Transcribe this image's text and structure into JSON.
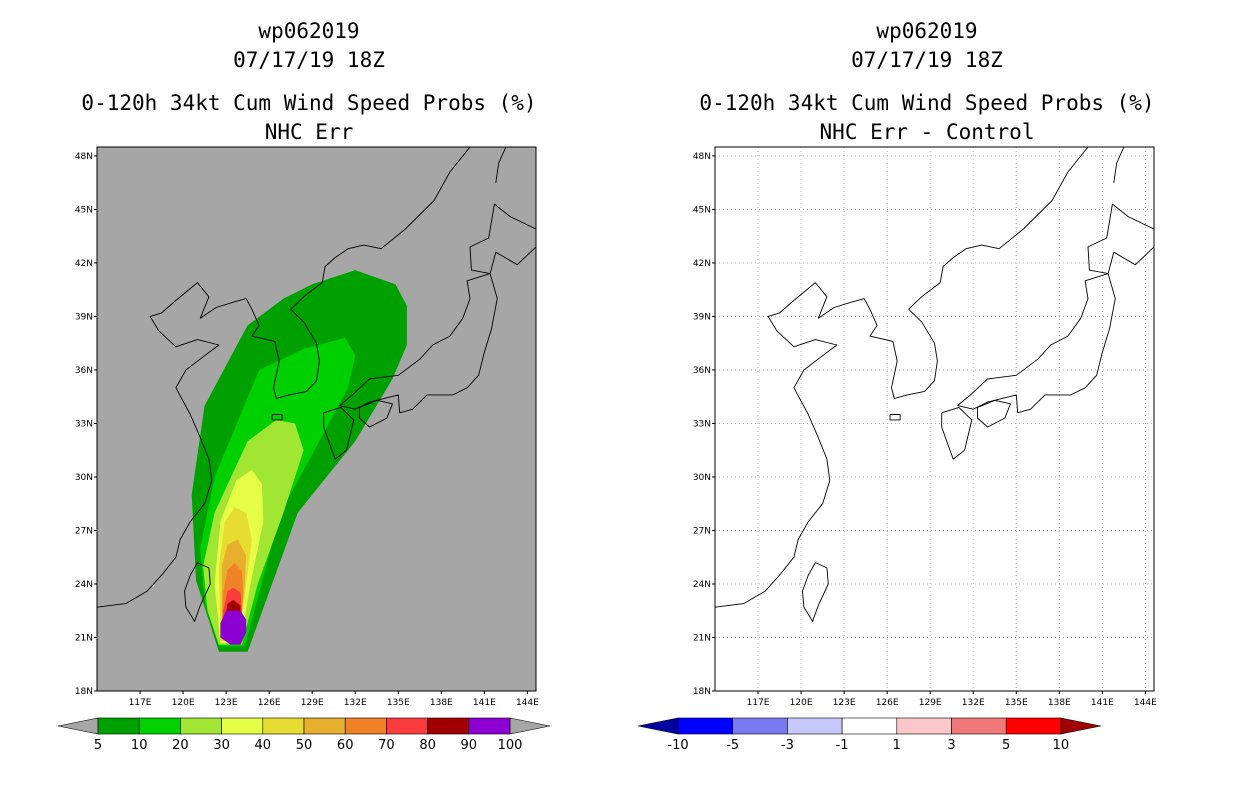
{
  "panels": [
    {
      "storm_id": "wp062019",
      "datetime": "07/17/19 18Z",
      "title": "0-120h 34kt Cum Wind Speed Probs (%)",
      "subtitle": "NHC Err",
      "background": "#a6a6a6",
      "gridlines": false,
      "colorbar_labels": [
        "5",
        "10",
        "20",
        "30",
        "40",
        "50",
        "60",
        "70",
        "80",
        "90",
        "100"
      ],
      "colorbar_colors": [
        "#00a000",
        "#00d000",
        "#a0e632",
        "#e6ff46",
        "#e6dc32",
        "#e6af2d",
        "#f08228",
        "#fa3c3c",
        "#a00000",
        "#8c00d2"
      ],
      "colorbar_end_colors": [
        "#a6a6a6",
        "#a6a6a6"
      ]
    },
    {
      "storm_id": "wp062019",
      "datetime": "07/17/19 18Z",
      "title": "0-120h 34kt Cum Wind Speed Probs (%)",
      "subtitle": "NHC Err - Control",
      "background": "#ffffff",
      "gridlines": true,
      "colorbar_labels": [
        "-10",
        "-5",
        "-3",
        "-1",
        "1",
        "3",
        "5",
        "10"
      ],
      "colorbar_colors": [
        "#0000ff",
        "#7878f0",
        "#c8c8fa",
        "#ffffff",
        "#fac8c8",
        "#f07878",
        "#ff0000"
      ],
      "colorbar_end_colors": [
        "#0000a0",
        "#a00000"
      ]
    }
  ],
  "map_axes": {
    "lat_labels": [
      "48N",
      "45N",
      "42N",
      "39N",
      "36N",
      "33N",
      "30N",
      "27N",
      "24N",
      "21N",
      "18N"
    ],
    "lon_labels": [
      "117E",
      "120E",
      "123E",
      "126E",
      "129E",
      "132E",
      "135E",
      "138E",
      "141E",
      "144E"
    ],
    "lat_range": [
      18,
      48.5
    ],
    "lon_range": [
      114,
      144.6
    ]
  },
  "probability_shading": [
    {
      "level": "5",
      "color": "#00a000",
      "hull": [
        [
          122.5,
          20.2
        ],
        [
          124.5,
          20.2
        ],
        [
          128,
          28
        ],
        [
          132,
          32
        ],
        [
          134.6,
          35.5
        ],
        [
          135.6,
          37.4
        ],
        [
          135.6,
          39.6
        ],
        [
          134.8,
          40.8
        ],
        [
          132,
          41.6
        ],
        [
          129,
          40.8
        ],
        [
          127,
          40
        ],
        [
          124.5,
          38.5
        ],
        [
          121.5,
          34
        ],
        [
          120.6,
          29
        ],
        [
          120.9,
          24.2
        ]
      ]
    },
    {
      "level": "10",
      "color": "#00d000",
      "hull": [
        [
          122.5,
          20.5
        ],
        [
          124.3,
          20.5
        ],
        [
          126.8,
          28
        ],
        [
          129.5,
          32
        ],
        [
          131.5,
          35
        ],
        [
          132,
          36.8
        ],
        [
          131.3,
          37.8
        ],
        [
          128.5,
          37.2
        ],
        [
          125.3,
          36
        ],
        [
          122.2,
          30
        ],
        [
          121.2,
          26
        ],
        [
          121.5,
          23
        ]
      ]
    },
    {
      "level": "20",
      "color": "#a0e632",
      "hull": [
        [
          122.5,
          20.6
        ],
        [
          124.1,
          20.6
        ],
        [
          125.2,
          24
        ],
        [
          127,
          28
        ],
        [
          128.4,
          31.5
        ],
        [
          127.8,
          33
        ],
        [
          126.5,
          33.2
        ],
        [
          124.5,
          32
        ],
        [
          122.2,
          28
        ],
        [
          121.4,
          25
        ],
        [
          121.7,
          22.5
        ]
      ]
    },
    {
      "level": "30",
      "color": "#e6ff46",
      "hull": [
        [
          122.6,
          20.7
        ],
        [
          124,
          20.7
        ],
        [
          124.7,
          24
        ],
        [
          125.6,
          27.5
        ],
        [
          125.5,
          29.6
        ],
        [
          124.8,
          30.4
        ],
        [
          123.7,
          29.8
        ],
        [
          122.6,
          27.5
        ],
        [
          122.2,
          24
        ]
      ]
    },
    {
      "level": "40",
      "color": "#e6dc32",
      "hull": [
        [
          122.6,
          20.8
        ],
        [
          123.9,
          20.8
        ],
        [
          124.4,
          24
        ],
        [
          124.8,
          26.5
        ],
        [
          124.4,
          28
        ],
        [
          123.6,
          28.3
        ],
        [
          122.9,
          27.5
        ],
        [
          122.5,
          25
        ]
      ]
    },
    {
      "level": "50",
      "color": "#e6af2d",
      "hull": [
        [
          122.7,
          20.9
        ],
        [
          123.9,
          20.9
        ],
        [
          124.3,
          24
        ],
        [
          124.4,
          25.6
        ],
        [
          123.8,
          26.5
        ],
        [
          123.1,
          26.2
        ],
        [
          122.7,
          25
        ]
      ]
    },
    {
      "level": "60",
      "color": "#f08228",
      "hull": [
        [
          122.7,
          21
        ],
        [
          123.9,
          21
        ],
        [
          124.2,
          23.5
        ],
        [
          124.1,
          24.7
        ],
        [
          123.6,
          25.2
        ],
        [
          123.1,
          24.8
        ],
        [
          122.8,
          23.5
        ]
      ]
    },
    {
      "level": "70",
      "color": "#fa3c3c",
      "hull": [
        [
          122.8,
          21.1
        ],
        [
          123.8,
          21.1
        ],
        [
          124.1,
          22.5
        ],
        [
          124,
          23.5
        ],
        [
          123.5,
          23.8
        ],
        [
          123.1,
          23.6
        ],
        [
          122.8,
          22.5
        ]
      ]
    },
    {
      "level": "80",
      "color": "#a00000",
      "hull": [
        [
          122.9,
          21.2
        ],
        [
          123.8,
          21.2
        ],
        [
          124,
          22
        ],
        [
          124,
          22.8
        ],
        [
          123.5,
          23.1
        ],
        [
          123.1,
          22.9
        ],
        [
          122.9,
          22
        ]
      ]
    },
    {
      "level": "90",
      "color": "#8c00d2",
      "hull": [
        [
          122.6,
          21
        ],
        [
          123.3,
          20.6
        ],
        [
          124,
          20.6
        ],
        [
          124.4,
          21.3
        ],
        [
          124.4,
          22
        ],
        [
          124,
          22.5
        ],
        [
          123,
          22.5
        ],
        [
          122.6,
          21.8
        ]
      ]
    }
  ],
  "coastlines": {
    "china_coast": [
      [
        114,
        22.7
      ],
      [
        116,
        22.9
      ],
      [
        117.5,
        23.6
      ],
      [
        118.5,
        24.5
      ],
      [
        119.5,
        25.5
      ],
      [
        119.8,
        26.5
      ],
      [
        120.5,
        27.5
      ],
      [
        121.5,
        28.5
      ],
      [
        122,
        29.8
      ],
      [
        121.8,
        31
      ],
      [
        121.2,
        32.2
      ],
      [
        120.5,
        33.5
      ],
      [
        119.5,
        35
      ],
      [
        120.2,
        36
      ],
      [
        121.5,
        36.8
      ],
      [
        122.5,
        37.4
      ],
      [
        121,
        37.7
      ],
      [
        119.5,
        37.3
      ],
      [
        118.3,
        38.2
      ],
      [
        117.7,
        39
      ],
      [
        118.5,
        39.2
      ],
      [
        119.5,
        39.9
      ],
      [
        121,
        40.9
      ],
      [
        121.8,
        40.1
      ],
      [
        121.2,
        38.9
      ],
      [
        122.3,
        39.5
      ],
      [
        123.5,
        39.8
      ],
      [
        124.4,
        40
      ]
    ],
    "taiwan": [
      [
        121,
        25.2
      ],
      [
        121.8,
        24.9
      ],
      [
        121.9,
        24
      ],
      [
        121.2,
        22.8
      ],
      [
        120.8,
        21.9
      ],
      [
        120.2,
        22.7
      ],
      [
        120.1,
        23.6
      ],
      [
        120.5,
        24.5
      ],
      [
        121,
        25.2
      ]
    ],
    "korea": [
      [
        124.4,
        40
      ],
      [
        124.8,
        39.4
      ],
      [
        125.3,
        38.5
      ],
      [
        124.8,
        37.9
      ],
      [
        126.4,
        37.6
      ],
      [
        126.7,
        36.5
      ],
      [
        126.3,
        35
      ],
      [
        126.5,
        34.4
      ],
      [
        127.4,
        34.6
      ],
      [
        128.6,
        34.8
      ],
      [
        129.3,
        35.4
      ],
      [
        129.5,
        36.5
      ],
      [
        129.3,
        37.5
      ],
      [
        128.4,
        38.7
      ],
      [
        127.5,
        39.4
      ],
      [
        128.4,
        40.1
      ],
      [
        129.7,
        40.9
      ],
      [
        129.9,
        41.8
      ],
      [
        130.6,
        42.3
      ]
    ],
    "russia": [
      [
        130.6,
        42.3
      ],
      [
        131.5,
        42.8
      ],
      [
        132.6,
        43
      ],
      [
        133.8,
        42.8
      ],
      [
        135.5,
        43.9
      ],
      [
        137.5,
        45.5
      ],
      [
        138.6,
        47.1
      ],
      [
        140,
        48.5
      ]
    ],
    "honshu": [
      [
        130.9,
        34
      ],
      [
        131.8,
        34.6
      ],
      [
        133,
        35.5
      ],
      [
        135,
        35.7
      ],
      [
        136.5,
        36.6
      ],
      [
        137.4,
        37.4
      ],
      [
        138.6,
        37.9
      ],
      [
        139.5,
        38.9
      ],
      [
        140,
        40
      ],
      [
        139.8,
        41
      ],
      [
        141.4,
        41.4
      ],
      [
        141.9,
        40
      ],
      [
        141.5,
        38.3
      ],
      [
        141,
        37
      ],
      [
        140.6,
        35.7
      ],
      [
        139.8,
        35
      ],
      [
        138.8,
        34.6
      ],
      [
        137,
        34.6
      ],
      [
        136,
        33.8
      ],
      [
        135.1,
        33.6
      ],
      [
        135,
        34.6
      ],
      [
        133,
        34.2
      ],
      [
        132,
        33.8
      ],
      [
        130.9,
        34
      ]
    ],
    "kyushu": [
      [
        129.8,
        33.6
      ],
      [
        131,
        33.9
      ],
      [
        131.9,
        33.2
      ],
      [
        131.4,
        31.5
      ],
      [
        130.6,
        31
      ],
      [
        130.2,
        31.9
      ],
      [
        129.8,
        32.8
      ],
      [
        129.8,
        33.6
      ]
    ],
    "shikoku": [
      [
        132.3,
        33.9
      ],
      [
        133.5,
        34.3
      ],
      [
        134.6,
        34.1
      ],
      [
        134.2,
        33.3
      ],
      [
        133,
        32.8
      ],
      [
        132.3,
        33.3
      ],
      [
        132.3,
        33.9
      ]
    ],
    "hokkaido": [
      [
        141.4,
        41.4
      ],
      [
        140.1,
        41.6
      ],
      [
        140,
        42.9
      ],
      [
        141.3,
        43.4
      ],
      [
        141.7,
        45.3
      ],
      [
        142.8,
        44.6
      ],
      [
        144.6,
        43.9
      ],
      [
        144.6,
        42.9
      ],
      [
        143.3,
        41.9
      ],
      [
        141.8,
        42.6
      ],
      [
        141.4,
        41.4
      ]
    ],
    "jeju": [
      [
        126.2,
        33.5
      ],
      [
        126.9,
        33.5
      ],
      [
        126.9,
        33.2
      ],
      [
        126.2,
        33.2
      ],
      [
        126.2,
        33.5
      ]
    ],
    "sakhalin": [
      [
        141.8,
        46.5
      ],
      [
        142,
        47.6
      ],
      [
        142.5,
        48.5
      ]
    ]
  }
}
